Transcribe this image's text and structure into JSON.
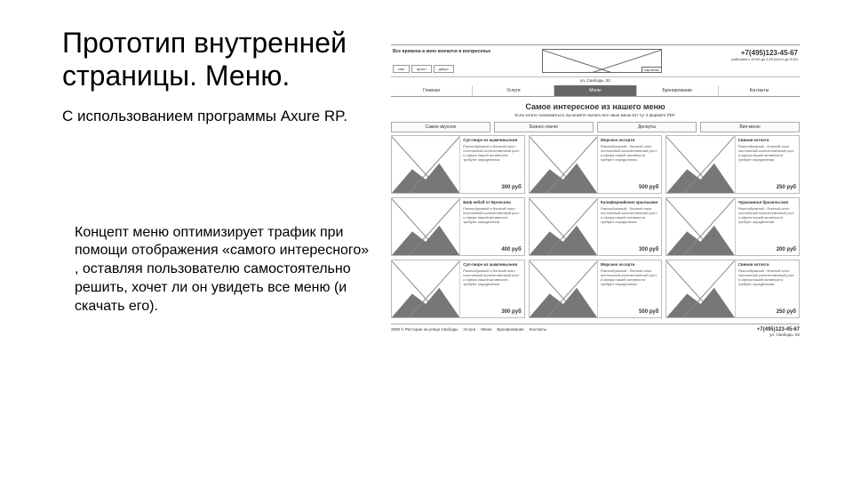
{
  "title": "Прототип внутренней страницы. Меню.",
  "subtitle": "С использованием программы Axure RP.",
  "description": "Концепт меню оптимизирует трафик при помощи отображения «самого интересного» , оставляя пользователю самостоятельно решить, хочет ли он увидеть все меню (и скачать его).",
  "wf": {
    "header": {
      "tagline": "Все времена в кино кончатся в воскресенье",
      "chips": [
        "сам",
        "артон",
        "дверь"
      ],
      "logo_tag": "картинка",
      "logo_sub": "ул. Свободы, 52",
      "phone": "+7(495)123-45-67",
      "phone_sub": "работаем с 10:00 до 2:00 (пн-пт до 5:00)"
    },
    "nav": [
      "Главная",
      "Услуги",
      "Меню",
      "Бронирование",
      "Контакты"
    ],
    "headline": "Самое интересное из нашего меню",
    "sub": "Если хотите ознакомиться, вы можете скачать все наше меню вот тут в формате PDF.",
    "tabs": [
      "Самое вкусное",
      "Бизнес-ланчи",
      "Десерты",
      "Вип-меню"
    ],
    "cards": [
      {
        "t": "Суп-пюре из шампиньонов",
        "d": "Разнообразный и богатый опыт постоянный количественный рост и сфера нашей активности требуют определения",
        "p": "300 руб"
      },
      {
        "t": "Морское ассорти",
        "d": "Разнообразный - богатый опыт постоянный количественный рост и сфера нашей активности требуют определения",
        "p": "500 руб"
      },
      {
        "t": "Свиная котлета",
        "d": "Разнообразный - богатый опыт постоянный количественный рост и сфера нашей активности требуют определения",
        "p": "250 руб"
      },
      {
        "t": "Биф-кебаб от Бронсона",
        "d": "Разнообразный и богатый опыт постоянный количественный рост и сфера нашей активности требуют определения",
        "p": "400 руб"
      },
      {
        "t": "Калифорнийские крылышки",
        "d": "Разнообразный - богатый опыт постоянный количественный рост и сфера нашей активности требуют определения",
        "p": "300 руб"
      },
      {
        "t": "Чураскинья бразильская",
        "d": "Разнообразный - богатый опыт постоянный количественный рост и сфера нашей активности требуют определения",
        "p": "200 руб"
      },
      {
        "t": "Суп-пюре из шампиньонов",
        "d": "Разнообразный и богатый опыт постоянный количественный рост и сфера нашей активности требуют определения",
        "p": "300 руб"
      },
      {
        "t": "Морское ассорти",
        "d": "Разнообразный - богатый опыт постоянный количественный рост и сфера нашей активности требуют определения",
        "p": "500 руб"
      },
      {
        "t": "Свиная котлета",
        "d": "Разнообразный - богатый опыт постоянный количественный рост и сфера нашей активности требуют определения",
        "p": "250 руб"
      }
    ],
    "footer": {
      "copyright": "2008 © Ресторан на улице Свободы",
      "links": [
        "Услуги",
        "Меню",
        "Бронирование",
        "Контакты"
      ],
      "phone": "+7(495)123-45-67",
      "addr": "ул. Свободы, 52"
    }
  }
}
